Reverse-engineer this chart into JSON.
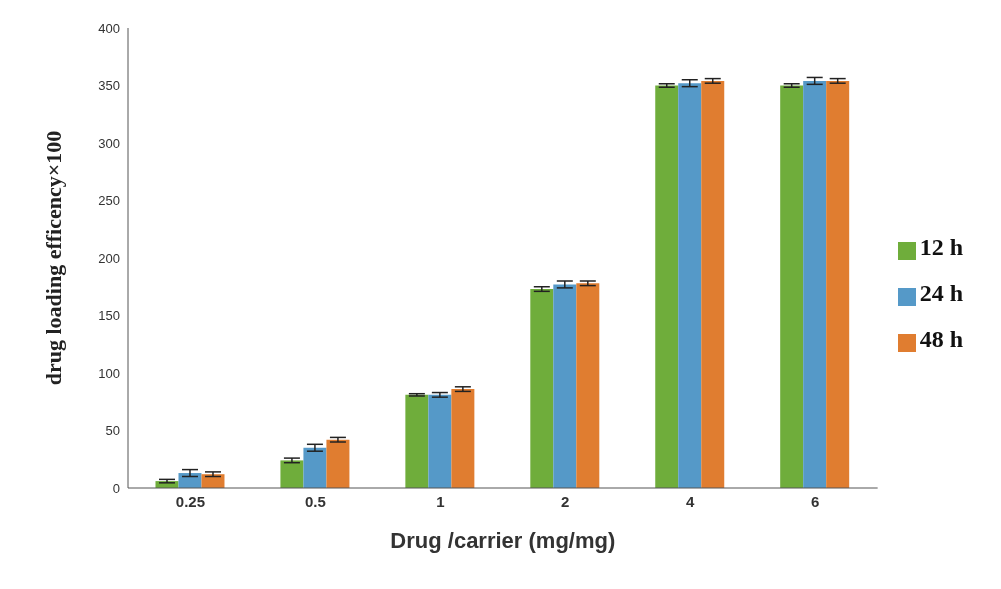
{
  "chart_data": {
    "type": "bar",
    "xlabel": "Drug /carrier (mg/mg)",
    "ylabel": "drug loading efficency×100",
    "categories": [
      "0.25",
      "0.5",
      "1",
      "2",
      "4",
      "6"
    ],
    "series": [
      {
        "name": "12 h",
        "color": "#6fad3b",
        "values": [
          6,
          24,
          81,
          173,
          350,
          350
        ],
        "errors": [
          1.5,
          2,
          1,
          2,
          1.5,
          1.5
        ]
      },
      {
        "name": "24 h",
        "color": "#5599c8",
        "values": [
          13,
          35,
          81,
          177,
          352,
          354
        ],
        "errors": [
          3,
          3,
          2,
          3,
          3,
          3
        ]
      },
      {
        "name": "48 h",
        "color": "#e07d30",
        "values": [
          12,
          42,
          86,
          178,
          354,
          354
        ],
        "errors": [
          2,
          2,
          2,
          2,
          2,
          2
        ]
      }
    ],
    "ylim": [
      0,
      400
    ],
    "yticks": [
      0,
      50,
      100,
      150,
      200,
      250,
      300,
      350,
      400
    ],
    "grid": false,
    "legend": "right"
  }
}
